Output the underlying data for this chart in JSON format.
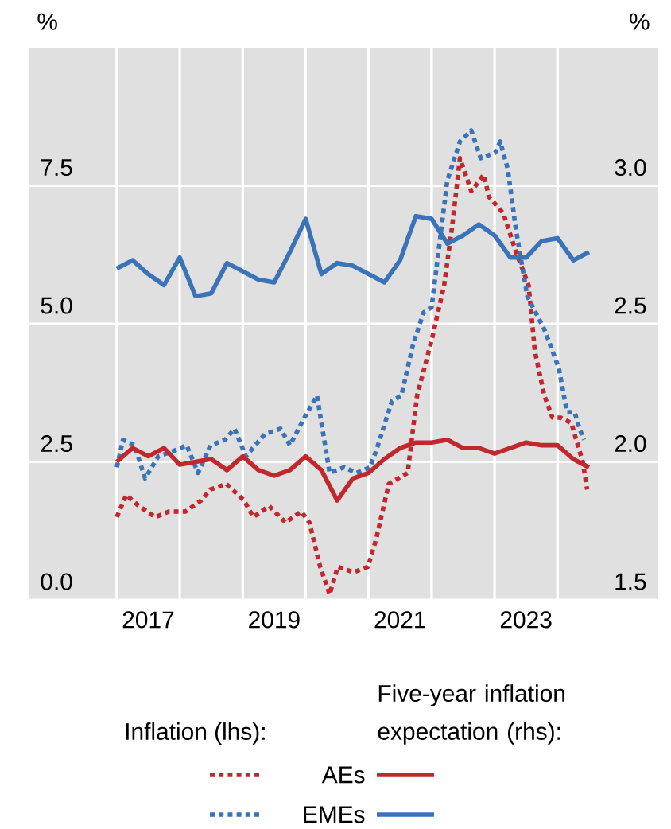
{
  "chart_data": {
    "type": "line",
    "ylabel": "%",
    "y2label": "%",
    "x": [
      2017.0,
      2017.25,
      2017.5,
      2017.75,
      2018.0,
      2018.25,
      2018.5,
      2018.75,
      2019.0,
      2019.25,
      2019.5,
      2019.75,
      2020.0,
      2020.25,
      2020.5,
      2020.75,
      2021.0,
      2021.25,
      2021.5,
      2021.75,
      2022.0,
      2022.25,
      2022.5,
      2022.75,
      2023.0,
      2023.25,
      2023.5,
      2023.75,
      2024.0,
      2024.25,
      2024.5
    ],
    "series": [
      {
        "name": "AEs",
        "color": "#c0282d",
        "line_style": "dotted",
        "x": [
          2017.0,
          2017.15,
          2017.35,
          2017.61,
          2017.83,
          2018.09,
          2018.34,
          2018.49,
          2018.74,
          2019.02,
          2019.17,
          2019.42,
          2019.68,
          2019.93,
          2020.06,
          2020.23,
          2020.38,
          2020.51,
          2020.76,
          2020.99,
          2021.12,
          2021.32,
          2021.62,
          2021.77,
          2022.0,
          2022.2,
          2022.33,
          2022.45,
          2022.63,
          2022.83,
          2022.91,
          2023.14,
          2023.34,
          2023.54,
          2023.64,
          2023.79,
          2023.92,
          2024.05,
          2024.22,
          2024.4,
          2024.47
        ],
        "values": [
          1.5,
          1.9,
          1.7,
          1.5,
          1.6,
          1.6,
          1.8,
          2.0,
          2.1,
          1.8,
          1.5,
          1.7,
          1.4,
          1.6,
          1.4,
          0.6,
          0.1,
          0.6,
          0.5,
          0.6,
          1.1,
          2.1,
          2.3,
          3.7,
          4.7,
          5.7,
          6.8,
          8.0,
          7.4,
          7.7,
          7.3,
          7.0,
          6.3,
          5.7,
          4.5,
          3.7,
          3.3,
          3.3,
          3.2,
          2.5,
          2.0
        ]
      },
      {
        "name": "EMEs",
        "color": "#3a73b8",
        "line_style": "dotted",
        "x": [
          2017.0,
          2017.1,
          2017.28,
          2017.45,
          2017.66,
          2017.91,
          2018.11,
          2018.29,
          2018.49,
          2018.72,
          2018.87,
          2019.05,
          2019.35,
          2019.6,
          2019.75,
          2019.98,
          2020.18,
          2020.38,
          2020.61,
          2020.81,
          2021.02,
          2021.12,
          2021.37,
          2021.52,
          2021.7,
          2021.87,
          2022.0,
          2022.25,
          2022.45,
          2022.63,
          2022.78,
          2023.01,
          2023.09,
          2023.21,
          2023.34,
          2023.52,
          2023.79,
          2024.02,
          2024.15,
          2024.27,
          2024.35,
          2024.42
        ],
        "values": [
          2.4,
          2.9,
          2.8,
          2.2,
          2.6,
          2.7,
          2.8,
          2.3,
          2.8,
          2.9,
          3.1,
          2.6,
          3.0,
          3.1,
          2.8,
          3.3,
          3.7,
          2.3,
          2.4,
          2.3,
          2.4,
          2.7,
          3.6,
          3.7,
          4.6,
          5.2,
          5.3,
          7.6,
          8.3,
          8.5,
          8.0,
          8.1,
          8.3,
          7.8,
          6.7,
          5.5,
          4.9,
          4.2,
          3.4,
          3.4,
          3.1,
          2.9
        ]
      },
      {
        "color": "#c0282d",
        "line_style": "solid",
        "axis": "y2",
        "values": [
          2.0,
          2.05,
          2.02,
          2.05,
          1.99,
          2.0,
          2.01,
          1.97,
          2.02,
          1.97,
          1.95,
          1.97,
          2.02,
          1.97,
          1.86,
          1.94,
          1.96,
          2.01,
          2.05,
          2.07,
          2.07,
          2.08,
          2.05,
          2.05,
          2.03,
          2.05,
          2.07,
          2.06,
          2.06,
          2.01,
          1.98
        ]
      },
      {
        "color": "#3a73b8",
        "line_style": "solid",
        "axis": "y2",
        "values": [
          2.7,
          2.73,
          2.68,
          2.64,
          2.74,
          2.6,
          2.61,
          2.72,
          2.69,
          2.66,
          2.65,
          2.76,
          2.88,
          2.68,
          2.72,
          2.71,
          2.68,
          2.65,
          2.73,
          2.89,
          2.88,
          2.79,
          2.82,
          2.86,
          2.82,
          2.74,
          2.74,
          2.8,
          2.81,
          2.73,
          2.76
        ]
      }
    ],
    "xlim": [
      2015.6,
      2025.6
    ],
    "xticks": [
      {
        "value": 2017,
        "label": null
      },
      {
        "value": 2017.5,
        "label": "2017"
      },
      {
        "value": 2018,
        "label": null
      },
      {
        "value": 2019,
        "label": null
      },
      {
        "value": 2019.5,
        "label": "2019"
      },
      {
        "value": 2020,
        "label": null
      },
      {
        "value": 2021,
        "label": null
      },
      {
        "value": 2021.5,
        "label": "2021"
      },
      {
        "value": 2022,
        "label": null
      },
      {
        "value": 2023,
        "label": null
      },
      {
        "value": 2023.5,
        "label": "2023"
      },
      {
        "value": 2024,
        "label": null
      }
    ],
    "ylim": [
      0,
      10
    ],
    "yticks": [
      {
        "value": 0,
        "label": "0.0"
      },
      2.5,
      {
        "value": 5,
        "label": "5.0"
      },
      7.5
    ],
    "y2lim": [
      1.5,
      3.5
    ],
    "y2ticks": [
      1.5,
      {
        "value": 2,
        "label": "2.0"
      },
      2.5,
      {
        "value": 3,
        "label": "3.0"
      }
    ],
    "grid": true,
    "legend": "bottom",
    "annotations": [
      "Inflation (lhs):",
      "Five-year inflation expectation (rhs):"
    ]
  }
}
